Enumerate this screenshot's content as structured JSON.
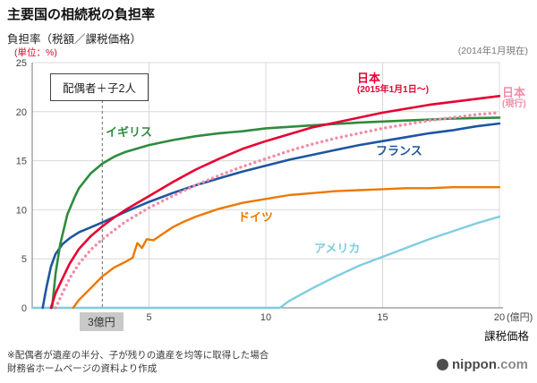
{
  "title": "主要国の相続税の負担率",
  "y_axis_title": "負担率（税額／課税価格）",
  "unit_label": "(単位：%)",
  "as_of": "(2014年1月現在)",
  "household_box": "配偶者＋子2人",
  "threshold_label": "3億円",
  "x_axis_title": "課税価格",
  "footnote1": "※配偶者が遺産の半分、子が残りの遺産を均等に取得した場合",
  "footnote2": "財務省ホームページの資料より作成",
  "logo": {
    "name": "nippon",
    "tld": ".com"
  },
  "colors": {
    "unit": "#e60032",
    "grid": "#d8d8d8",
    "axis": "#777777",
    "logo_gray": "#4d4d4f"
  },
  "chart_data": {
    "type": "line",
    "title": "主要国の相続税の負担率",
    "xlabel": "課税価格 (億円)",
    "ylabel": "負担率 (%)",
    "xlim": [
      0,
      20
    ],
    "ylim": [
      0,
      25
    ],
    "x_ticks": [
      0,
      5,
      10,
      15,
      20
    ],
    "x_last_suffix": "(億円)",
    "y_ticks": [
      0,
      5,
      10,
      15,
      20,
      25
    ],
    "threshold_x": 3,
    "grid": true,
    "series": [
      {
        "name": "アメリカ",
        "label_lines": [
          "アメリカ"
        ],
        "color": "#7fcde0",
        "style": "solid",
        "width": 2.4,
        "points": [
          [
            0,
            0
          ],
          [
            10.6,
            0
          ],
          [
            11,
            0.7
          ],
          [
            12,
            2
          ],
          [
            13,
            3.2
          ],
          [
            14,
            4.3
          ],
          [
            15,
            5.2
          ],
          [
            16,
            6.1
          ],
          [
            17,
            7
          ],
          [
            18,
            7.8
          ],
          [
            19,
            8.6
          ],
          [
            20,
            9.3
          ]
        ]
      },
      {
        "name": "ドイツ",
        "label_lines": [
          "ドイツ"
        ],
        "color": "#ee7800",
        "style": "solid",
        "width": 2.4,
        "points": [
          [
            1.75,
            0
          ],
          [
            2,
            0.8
          ],
          [
            2.5,
            2
          ],
          [
            3,
            3.2
          ],
          [
            3.5,
            4.1
          ],
          [
            4,
            4.7
          ],
          [
            4.3,
            5.1
          ],
          [
            4.5,
            6.6
          ],
          [
            4.7,
            6.1
          ],
          [
            4.9,
            7
          ],
          [
            5.2,
            6.9
          ],
          [
            5.5,
            7.4
          ],
          [
            6,
            8.2
          ],
          [
            6.5,
            8.8
          ],
          [
            7,
            9.3
          ],
          [
            7.5,
            9.7
          ],
          [
            8,
            10.1
          ],
          [
            9,
            10.7
          ],
          [
            10,
            11.1
          ],
          [
            11,
            11.5
          ],
          [
            12,
            11.7
          ],
          [
            13,
            11.9
          ],
          [
            14,
            12
          ],
          [
            15,
            12.1
          ],
          [
            16,
            12.2
          ],
          [
            17,
            12.2
          ],
          [
            18,
            12.3
          ],
          [
            19,
            12.3
          ],
          [
            20,
            12.3
          ]
        ]
      },
      {
        "name": "フランス",
        "label_lines": [
          "フランス"
        ],
        "color": "#1e56a0",
        "style": "solid",
        "width": 2.6,
        "points": [
          [
            0.45,
            0
          ],
          [
            0.6,
            2
          ],
          [
            0.8,
            4.2
          ],
          [
            1,
            5.5
          ],
          [
            1.3,
            6.5
          ],
          [
            1.6,
            7.1
          ],
          [
            2,
            7.7
          ],
          [
            2.5,
            8.2
          ],
          [
            3,
            8.7
          ],
          [
            4,
            9.8
          ],
          [
            5,
            10.8
          ],
          [
            6,
            11.7
          ],
          [
            7,
            12.5
          ],
          [
            8,
            13.2
          ],
          [
            9,
            13.9
          ],
          [
            10,
            14.5
          ],
          [
            11,
            15.1
          ],
          [
            12,
            15.6
          ],
          [
            13,
            16.1
          ],
          [
            14,
            16.6
          ],
          [
            15,
            17
          ],
          [
            16,
            17.4
          ],
          [
            17,
            17.8
          ],
          [
            18,
            18.1
          ],
          [
            19,
            18.5
          ],
          [
            20,
            18.8
          ]
        ]
      },
      {
        "name": "イギリス",
        "label_lines": [
          "イギリス"
        ],
        "color": "#2f8b3f",
        "style": "solid",
        "width": 2.6,
        "points": [
          [
            0.85,
            0
          ],
          [
            1,
            3.5
          ],
          [
            1.2,
            6.5
          ],
          [
            1.5,
            9.5
          ],
          [
            1.8,
            11.2
          ],
          [
            2,
            12.2
          ],
          [
            2.5,
            13.7
          ],
          [
            3,
            14.7
          ],
          [
            3.5,
            15.4
          ],
          [
            4,
            15.9
          ],
          [
            5,
            16.6
          ],
          [
            6,
            17.1
          ],
          [
            7,
            17.5
          ],
          [
            8,
            17.8
          ],
          [
            9,
            18
          ],
          [
            10,
            18.3
          ],
          [
            12,
            18.6
          ],
          [
            14,
            18.9
          ],
          [
            16,
            19.1
          ],
          [
            18,
            19.3
          ],
          [
            20,
            19.4
          ]
        ]
      },
      {
        "name": "日本(現行)",
        "label_lines": [
          "日本",
          "(現行)"
        ],
        "color": "#f08da8",
        "style": "dotted",
        "width": 3.4,
        "points": [
          [
            1,
            0
          ],
          [
            1.3,
            1.5
          ],
          [
            1.6,
            3
          ],
          [
            2,
            4.5
          ],
          [
            2.5,
            5.9
          ],
          [
            3,
            7
          ],
          [
            4,
            8.8
          ],
          [
            5,
            10.2
          ],
          [
            6,
            11.4
          ],
          [
            7,
            12.5
          ],
          [
            8,
            13.5
          ],
          [
            9,
            14.4
          ],
          [
            10,
            15.2
          ],
          [
            11,
            16
          ],
          [
            12,
            16.7
          ],
          [
            13,
            17.3
          ],
          [
            14,
            17.8
          ],
          [
            15,
            18.3
          ],
          [
            16,
            18.7
          ],
          [
            17,
            19.1
          ],
          [
            18,
            19.4
          ],
          [
            19,
            19.7
          ],
          [
            20,
            19.9
          ]
        ]
      },
      {
        "name": "日本(2015年1月1日〜)",
        "label_lines": [
          "日本",
          "(2015年1月1日〜)"
        ],
        "color": "#e60032",
        "style": "solid",
        "width": 2.6,
        "points": [
          [
            0.8,
            0
          ],
          [
            1,
            1.5
          ],
          [
            1.3,
            3
          ],
          [
            1.6,
            4.5
          ],
          [
            2,
            6
          ],
          [
            2.5,
            7.3
          ],
          [
            3,
            8.3
          ],
          [
            3.5,
            9.2
          ],
          [
            4,
            10
          ],
          [
            5,
            11.4
          ],
          [
            6,
            12.8
          ],
          [
            7,
            14.1
          ],
          [
            8,
            15.2
          ],
          [
            9,
            16.2
          ],
          [
            10,
            17
          ],
          [
            11,
            17.7
          ],
          [
            12,
            18.4
          ],
          [
            13,
            18.9
          ],
          [
            14,
            19.4
          ],
          [
            15,
            19.9
          ],
          [
            16,
            20.3
          ],
          [
            17,
            20.7
          ],
          [
            18,
            21
          ],
          [
            19,
            21.3
          ],
          [
            20,
            21.6
          ]
        ]
      }
    ]
  }
}
